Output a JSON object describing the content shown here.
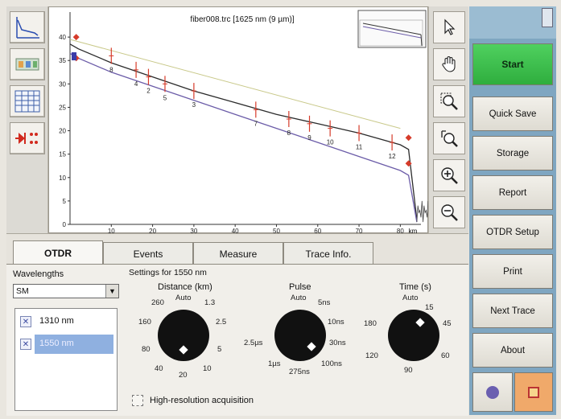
{
  "plot": {
    "title": "fiber008.trc [1625 nm (9 µm)]",
    "x_unit": "km",
    "x_ticks": [
      "10",
      "20",
      "30",
      "40",
      "50",
      "60",
      "70",
      "80"
    ],
    "y_ticks": [
      "40",
      "35",
      "30",
      "25",
      "20",
      "15",
      "10",
      "5",
      "0"
    ],
    "y_top_tick": "40",
    "event_labels": [
      "8",
      "4",
      "2",
      "5",
      "3",
      "7",
      "8",
      "9",
      "10",
      "11",
      "12"
    ]
  },
  "chart_data": {
    "type": "line",
    "title": "fiber008.trc [1625 nm (9 µm)]",
    "xlabel": "km",
    "ylabel": "",
    "xlim": [
      0,
      85
    ],
    "ylim": [
      0,
      45
    ],
    "series": [
      {
        "name": "",
        "color": "#2b2b2b",
        "x": [
          0,
          2,
          10,
          20,
          30,
          40,
          50,
          60,
          70,
          80,
          82,
          84
        ],
        "y": [
          38.5,
          37.5,
          34.5,
          31.5,
          28.5,
          26.0,
          23.5,
          21.5,
          19.5,
          17.0,
          16.0,
          1.0
        ]
      },
      {
        "name": "",
        "color": "#6b5ca8",
        "x": [
          0,
          2,
          10,
          20,
          30,
          40,
          50,
          60,
          70,
          80,
          82,
          84
        ],
        "y": [
          36.5,
          35.5,
          32.5,
          29.5,
          26.5,
          23.5,
          20.5,
          17.5,
          14.5,
          11.5,
          10.5,
          0.5
        ]
      },
      {
        "name": "",
        "color": "#c9c98a",
        "x": [
          0,
          80
        ],
        "y": [
          39.5,
          20.5
        ]
      }
    ]
  },
  "left_tools": [
    {
      "name": "trace-view-icon"
    },
    {
      "name": "summary-icon"
    },
    {
      "name": "table-icon"
    },
    {
      "name": "fiber-link-icon"
    }
  ],
  "right_tools": [
    {
      "name": "pointer-icon"
    },
    {
      "name": "hand-pan-icon"
    },
    {
      "name": "zoom-area-icon"
    },
    {
      "name": "zoom-fit-icon"
    },
    {
      "name": "zoom-in-icon"
    },
    {
      "name": "zoom-out-icon"
    }
  ],
  "tabs": [
    {
      "label": "OTDR"
    },
    {
      "label": "Events"
    },
    {
      "label": "Measure"
    },
    {
      "label": "Trace Info."
    }
  ],
  "wavelengths": {
    "label": "Wavelengths",
    "select_value": "SM",
    "items": [
      {
        "label": "1310 nm",
        "checked": true
      },
      {
        "label": "1550 nm",
        "checked": true
      }
    ]
  },
  "settings": {
    "title": "Settings for 1550 nm",
    "distance": {
      "label": "Distance (km)",
      "auto": "Auto",
      "scale": [
        "260",
        "1.3",
        "2.5",
        "160",
        "5",
        "80",
        "10",
        "40",
        "20"
      ]
    },
    "pulse": {
      "label": "Pulse",
      "auto": "Auto",
      "scale": [
        "5ns",
        "10ns",
        "30ns",
        "2.5µs",
        "100ns",
        "1µs",
        "275ns"
      ]
    },
    "time": {
      "label": "Time (s)",
      "auto": "Auto",
      "scale": [
        "15",
        "180",
        "45",
        "120",
        "60",
        "90"
      ]
    },
    "high_res_label": "High-resolution acquisition"
  },
  "menu": {
    "top_label": "",
    "buttons": [
      "Start",
      "Quick Save",
      "Storage",
      "Report",
      "OTDR Setup",
      "Print",
      "Next Trace",
      "About"
    ]
  },
  "colors": {
    "start_green": "#3cc04c",
    "menu_blue": "#7fa6c1",
    "marker_red": "#d63b2a"
  }
}
